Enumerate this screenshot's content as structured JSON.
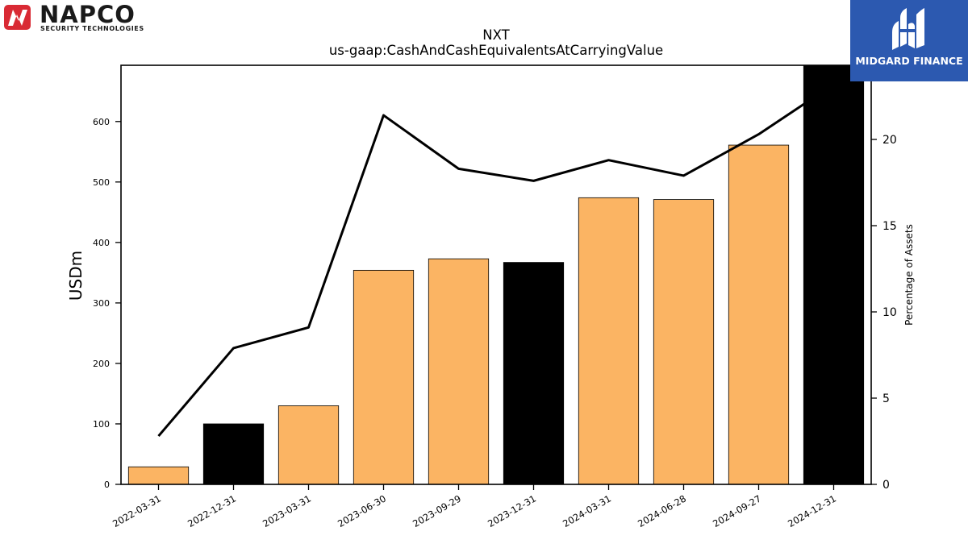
{
  "logos": {
    "left": {
      "name": "NAPCO",
      "tagline": "SECURITY TECHNOLOGIES"
    },
    "right": {
      "name": "MIDGARD FINANCE",
      "bg_color": "#2c59b0"
    }
  },
  "chart_data": {
    "type": "bar",
    "title": "NXT",
    "subtitle": "us-gaap:CashAndCashEquivalentsAtCarryingValue",
    "ylabel": "USDm",
    "y2label": "Percentage of Assets",
    "categories": [
      "2022-03-31",
      "2022-12-31",
      "2023-03-31",
      "2023-06-30",
      "2023-09-29",
      "2023-12-31",
      "2024-03-31",
      "2024-06-28",
      "2024-09-27",
      "2024-12-31"
    ],
    "series": [
      {
        "kind": "bar",
        "axis": "left",
        "values": [
          29,
          100,
          130,
          354,
          373,
          367,
          474,
          471,
          561,
          693
        ],
        "colors": [
          "#fbb463",
          "#000000",
          "#fbb463",
          "#fbb463",
          "#fbb463",
          "#000000",
          "#fbb463",
          "#fbb463",
          "#fbb463",
          "#000000"
        ]
      },
      {
        "kind": "line",
        "axis": "right",
        "values": [
          2.8,
          7.9,
          9.1,
          21.4,
          18.3,
          17.6,
          18.8,
          17.9,
          20.3,
          23.2
        ],
        "color": "#000000"
      }
    ],
    "ylim": [
      0,
      693
    ],
    "yticks": [
      0,
      100,
      200,
      300,
      400,
      500,
      600
    ],
    "y2lim": [
      0,
      24.3
    ],
    "y2ticks": [
      0,
      5,
      10,
      15,
      20
    ],
    "grid": false
  }
}
